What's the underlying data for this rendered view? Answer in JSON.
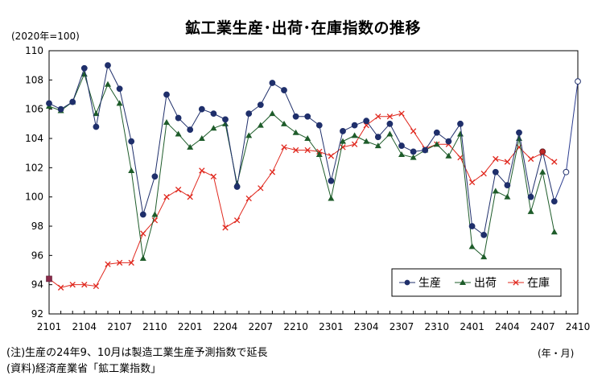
{
  "title": "鉱工業生産･出荷･在庫指数の推移",
  "unit_label": "(2020年=100)",
  "x_unit_label": "(年・月)",
  "notes": [
    "(注)生産の24年9、10月は製造工業生産予測指数で延長",
    "(資料)経済産業省「鉱工業指数」"
  ],
  "chart_data": {
    "type": "line",
    "x": [
      "2101",
      "2102",
      "2103",
      "2104",
      "2105",
      "2106",
      "2107",
      "2108",
      "2109",
      "2110",
      "2111",
      "2112",
      "2201",
      "2202",
      "2203",
      "2204",
      "2205",
      "2206",
      "2207",
      "2208",
      "2209",
      "2210",
      "2211",
      "2212",
      "2301",
      "2302",
      "2303",
      "2304",
      "2305",
      "2306",
      "2307",
      "2308",
      "2309",
      "2310",
      "2311",
      "2312",
      "2401",
      "2402",
      "2403",
      "2404",
      "2405",
      "2406",
      "2407",
      "2408",
      "2409",
      "2410"
    ],
    "x_tick_labels": [
      "2101",
      "2104",
      "2107",
      "2110",
      "2201",
      "2204",
      "2207",
      "2210",
      "2301",
      "2304",
      "2307",
      "2310",
      "2401",
      "2404",
      "2407",
      "2410"
    ],
    "ylim": [
      92,
      110
    ],
    "y_ticks": [
      92,
      94,
      96,
      98,
      100,
      102,
      104,
      106,
      108,
      110
    ],
    "series": [
      {
        "name": "生産",
        "color": "#1f2f6b",
        "marker": "circle",
        "values": [
          106.4,
          106.0,
          106.5,
          108.8,
          104.8,
          109.0,
          107.4,
          103.8,
          98.8,
          101.4,
          107.0,
          105.4,
          104.6,
          106.0,
          105.7,
          105.3,
          100.7,
          105.7,
          106.3,
          107.8,
          107.3,
          105.5,
          105.5,
          104.9,
          101.1,
          104.5,
          104.9,
          105.2,
          104.1,
          105.0,
          103.5,
          103.1,
          103.2,
          104.4,
          103.8,
          105.0,
          98.0,
          97.4,
          101.7,
          100.8,
          104.4,
          100.0,
          103.1,
          99.7,
          101.7,
          107.9
        ],
        "forecast_from_index": 44
      },
      {
        "name": "出荷",
        "color": "#1e5c2a",
        "marker": "triangle",
        "values": [
          106.2,
          105.9,
          106.5,
          108.4,
          105.7,
          107.7,
          106.4,
          101.8,
          95.8,
          98.8,
          105.1,
          104.3,
          103.4,
          104.0,
          104.7,
          105.0,
          100.9,
          104.2,
          104.9,
          105.7,
          105.0,
          104.4,
          104.0,
          102.9,
          99.9,
          103.8,
          104.2,
          103.8,
          103.5,
          104.3,
          102.9,
          102.7,
          103.2,
          103.6,
          102.8,
          104.3,
          96.6,
          95.9,
          100.4,
          100.0,
          104.0,
          99.0,
          101.7,
          97.6,
          null,
          null
        ]
      },
      {
        "name": "在庫",
        "color": "#e0281e",
        "marker": "x",
        "values": [
          94.4,
          93.8,
          94.0,
          94.0,
          93.9,
          95.4,
          95.5,
          95.5,
          97.5,
          98.4,
          100.0,
          100.5,
          100.0,
          101.8,
          101.4,
          97.9,
          98.4,
          99.9,
          100.6,
          101.7,
          103.4,
          103.2,
          103.2,
          103.1,
          102.8,
          103.4,
          103.6,
          104.9,
          105.5,
          105.5,
          105.7,
          104.5,
          103.3,
          103.6,
          103.6,
          102.7,
          101.0,
          101.6,
          102.6,
          102.4,
          103.4,
          102.6,
          103.0,
          102.4,
          null,
          null
        ]
      }
    ],
    "legend_position": "bottom-right",
    "grid": false
  }
}
